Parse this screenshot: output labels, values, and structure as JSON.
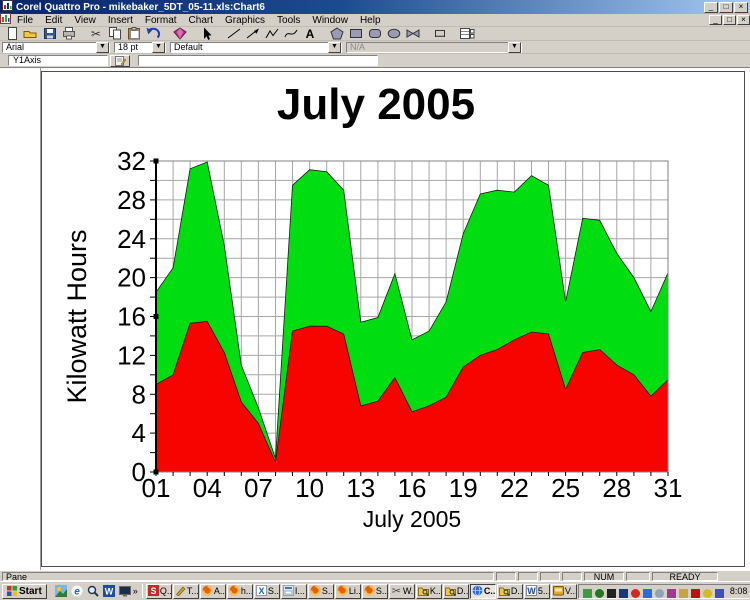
{
  "window": {
    "title": "Corel Quattro Pro - mikebaker_5DT_05-11.xls:Chart6",
    "menus": [
      "File",
      "Edit",
      "View",
      "Insert",
      "Format",
      "Chart",
      "Graphics",
      "Tools",
      "Window",
      "Help"
    ],
    "controls": {
      "minimize": "_",
      "restore": "□",
      "close": "×"
    }
  },
  "toolbar": {
    "buttons": [
      "new",
      "open",
      "save",
      "print",
      "cut",
      "copy",
      "paste",
      "undo",
      "quickchart",
      "pointer",
      "line",
      "arrow-line",
      "polyline",
      "freehand",
      "text",
      "polygon",
      "rectangle",
      "rounded-rectangle",
      "ellipse",
      "freeform",
      "push-button",
      "data-sheet"
    ],
    "group_starts": [
      4,
      8,
      9,
      10,
      15,
      20,
      21
    ]
  },
  "property_bar": {
    "font_name": "Arial",
    "font_size": "18 pt",
    "style": "Default",
    "extra": "N/A"
  },
  "selection_bar": {
    "selected_object": "Y1Axis"
  },
  "chart_data": {
    "type": "area",
    "stacked": true,
    "title": "July 2005",
    "xlabel": "July 2005",
    "ylabel": "Kilowatt Hours",
    "ylim": [
      0,
      32
    ],
    "y_ticks": [
      0,
      4,
      8,
      12,
      16,
      20,
      24,
      28,
      32
    ],
    "grid_step_y": 2,
    "grid": "on",
    "x_days": 31,
    "x_tick_labels": [
      "01",
      "04",
      "07",
      "10",
      "13",
      "16",
      "19",
      "22",
      "25",
      "28",
      "31"
    ],
    "x_tick_every": 3,
    "series": [
      {
        "name": "red",
        "color": "#F80400",
        "values": [
          9.0,
          10.0,
          15.3,
          15.5,
          12.3,
          7.2,
          5.0,
          1.0,
          14.5,
          15.0,
          15.0,
          14.2,
          6.8,
          7.3,
          9.7,
          6.2,
          6.8,
          7.7,
          10.8,
          12.0,
          12.6,
          13.6,
          14.4,
          14.2,
          8.5,
          12.3,
          12.6,
          11.0,
          10.0,
          7.8,
          9.5
        ]
      },
      {
        "name": "green",
        "color": "#00DE12",
        "values": [
          9.5,
          11.0,
          15.9,
          16.4,
          11.0,
          3.8,
          1.6,
          0.4,
          15.0,
          16.1,
          15.9,
          14.8,
          8.6,
          8.6,
          10.7,
          7.4,
          7.7,
          9.8,
          13.7,
          16.6,
          16.4,
          15.2,
          16.1,
          15.3,
          9.0,
          13.8,
          13.3,
          11.5,
          10.0,
          8.7,
          11.0
        ]
      }
    ]
  },
  "status_bar": {
    "pane": "Pane",
    "num": "NUM",
    "ready": "READY"
  },
  "taskbar": {
    "start_label": "Start",
    "quick_launch": [
      "photo",
      "ie",
      "search",
      "wp",
      "desktop"
    ],
    "overflow_chevron": "»",
    "tasks": [
      {
        "label": "Q...",
        "icon": "red-s"
      },
      {
        "label": "T...",
        "icon": "pen"
      },
      {
        "label": "A...",
        "icon": "firefox"
      },
      {
        "label": "h...",
        "icon": "firefox"
      },
      {
        "label": "S...",
        "icon": "x-app"
      },
      {
        "label": "I...",
        "icon": "win-app"
      },
      {
        "label": "S...",
        "icon": "firefox"
      },
      {
        "label": "Li...",
        "icon": "firefox"
      },
      {
        "label": "S...",
        "icon": "firefox"
      },
      {
        "label": "W...",
        "icon": "scissors"
      },
      {
        "label": "K...",
        "icon": "search-folder"
      },
      {
        "label": "D...",
        "icon": "search-folder"
      },
      {
        "label": "C...",
        "icon": "globe",
        "active": true
      },
      {
        "label": "D...",
        "icon": "search-folder"
      },
      {
        "label": "5...",
        "icon": "word-doc"
      },
      {
        "label": "V...",
        "icon": "gold-app"
      }
    ],
    "tray_icons": [
      {
        "shape": "rect",
        "color": "#3e9c3e"
      },
      {
        "shape": "circle",
        "color": "#1f7a1f"
      },
      {
        "shape": "rect",
        "color": "#222222"
      },
      {
        "shape": "rect",
        "color": "#15397f"
      },
      {
        "shape": "circle",
        "color": "#cf2a1b"
      },
      {
        "shape": "rect",
        "color": "#2b6fd4"
      },
      {
        "shape": "circle",
        "color": "#8fa3b8"
      },
      {
        "shape": "rect",
        "color": "#a23a8a"
      },
      {
        "shape": "rect",
        "color": "#c8a24b"
      },
      {
        "shape": "rect",
        "color": "#c11212"
      },
      {
        "shape": "circle",
        "color": "#d8b922"
      },
      {
        "shape": "rect",
        "color": "#3f51b5"
      }
    ],
    "clock": "8:08 PM"
  }
}
